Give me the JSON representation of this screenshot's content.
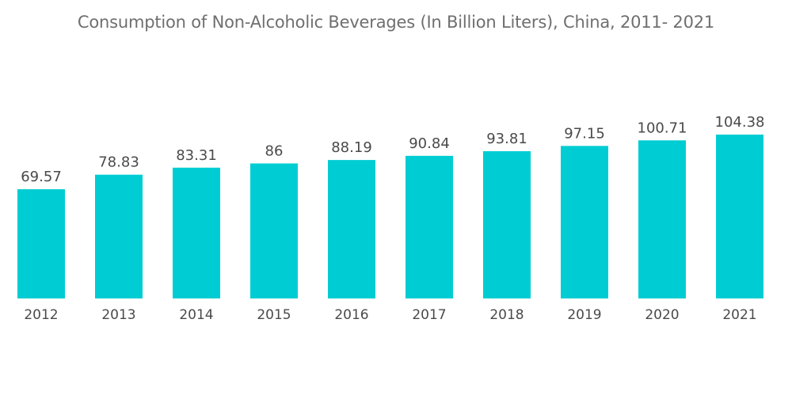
{
  "chart_data": {
    "type": "bar",
    "title": "Consumption of Non-Alcoholic Beverages (In Billion Liters), China, 2011- 2021",
    "xlabel": "",
    "ylabel": "",
    "categories": [
      "2012",
      "2013",
      "2014",
      "2015",
      "2016",
      "2017",
      "2018",
      "2019",
      "2020",
      "2021"
    ],
    "values": [
      69.57,
      78.83,
      83.31,
      86,
      88.19,
      90.84,
      93.81,
      97.15,
      100.71,
      104.38
    ],
    "value_labels": [
      "69.57",
      "78.83",
      "83.31",
      "86",
      "88.19",
      "90.84",
      "93.81",
      "97.15",
      "100.71",
      "104.38"
    ],
    "ylim": [
      0,
      104.38
    ],
    "grid": false,
    "legend": "none",
    "bar_color": "#00cdd3"
  }
}
